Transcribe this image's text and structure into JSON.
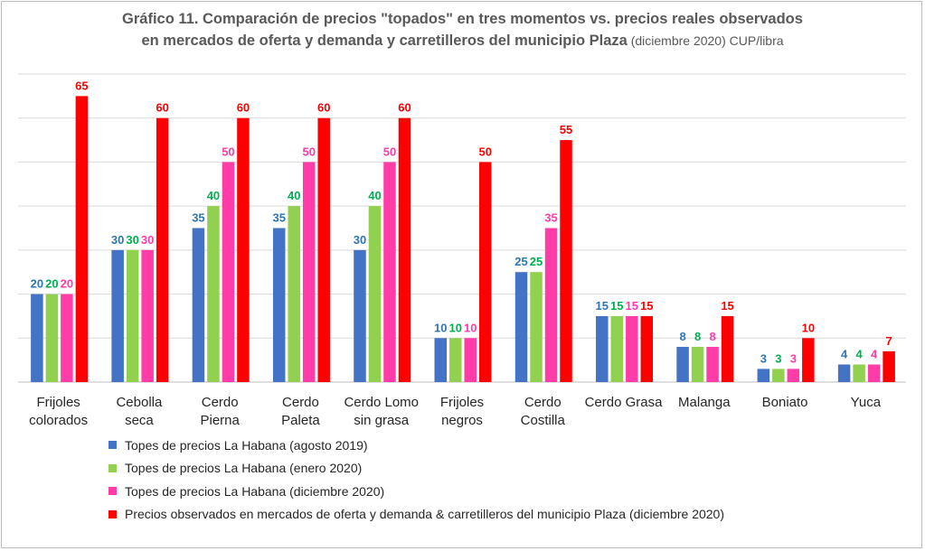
{
  "chart_data": {
    "type": "bar",
    "title_line1": "Gráfico 11. Comparación de precios \"topados\" en tres momentos vs. precios reales observados",
    "title_line2_bold": "en mercados de oferta y demanda y carretilleros del municipio Plaza",
    "title_line2_normal": " (diciembre 2020) CUP/libra",
    "categories": [
      [
        "Frijoles",
        "colorados"
      ],
      [
        "Cebolla",
        "seca"
      ],
      [
        "Cerdo",
        "Pierna"
      ],
      [
        "Cerdo",
        "Paleta"
      ],
      [
        "Cerdo Lomo",
        "sin grasa"
      ],
      [
        "Frijoles",
        "negros"
      ],
      [
        "Cerdo",
        "Costilla"
      ],
      [
        "Cerdo Grasa"
      ],
      [
        "Malanga"
      ],
      [
        "Boniato"
      ],
      [
        "Yuca"
      ]
    ],
    "series": [
      {
        "name": "Topes de precios La Habana (agosto 2019)",
        "color": "#4472c4",
        "label_color": "#2e75b6",
        "values": [
          20,
          30,
          35,
          35,
          30,
          10,
          25,
          15,
          8,
          3,
          4
        ]
      },
      {
        "name": "Topes de precios La Habana (enero 2020)",
        "color": "#92d050",
        "label_color": "#00b050",
        "values": [
          20,
          30,
          40,
          40,
          40,
          10,
          25,
          15,
          8,
          3,
          4
        ]
      },
      {
        "name": "Topes de precios La Habana (diciembre 2020)",
        "color": "#ff3ca8",
        "label_color": "#ff3ca8",
        "values": [
          20,
          30,
          50,
          50,
          50,
          10,
          35,
          15,
          8,
          3,
          4
        ]
      },
      {
        "name": "Precios observados en mercados de oferta y demanda & carretilleros del municipio Plaza (diciembre 2020)",
        "color": "#ff0000",
        "label_color": "#ff0000",
        "values": [
          65,
          60,
          60,
          60,
          60,
          50,
          55,
          15,
          15,
          10,
          7
        ]
      }
    ],
    "ylim": [
      0,
      70
    ],
    "grid": true,
    "legend_position": "bottom-left"
  }
}
